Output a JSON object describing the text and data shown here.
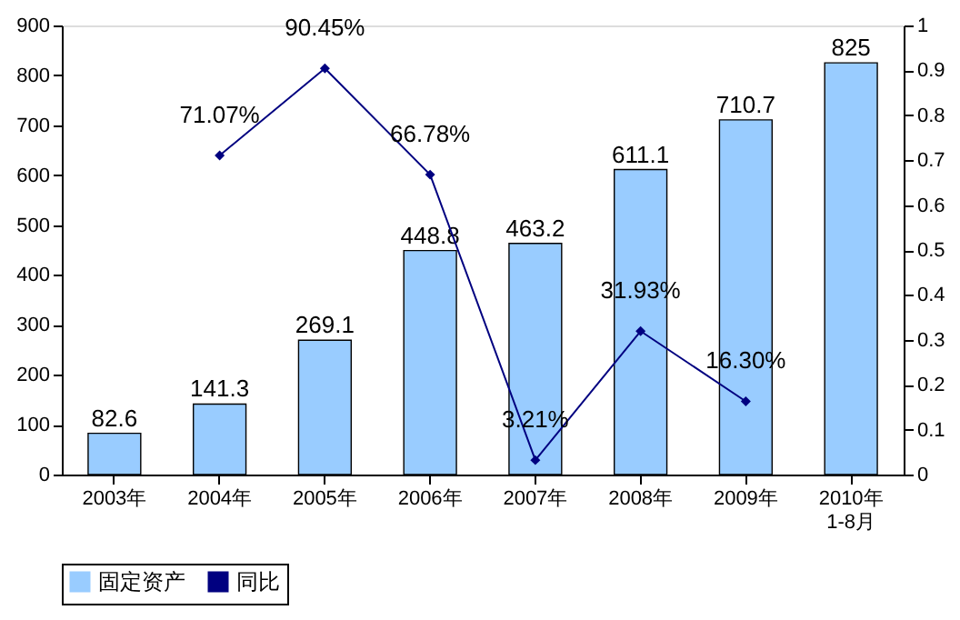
{
  "chart_data": {
    "type": "bar",
    "categories": [
      "2003年",
      "2004年",
      "2005年",
      "2006年",
      "2007年",
      "2008年",
      "2009年",
      "2010年 1-8月"
    ],
    "series": [
      {
        "name": "固定资产",
        "color": "#99ccff",
        "values": [
          82.6,
          141.3,
          269.1,
          448.8,
          463.2,
          611.1,
          710.7,
          825
        ],
        "value_labels": [
          "82.6",
          "141.3",
          "269.1",
          "448.8",
          "463.2",
          "611.1",
          "710.7",
          "825"
        ]
      },
      {
        "name": "同比",
        "type": "line",
        "axis": "y2",
        "color": "#000080",
        "values": [
          null,
          0.7107,
          0.9045,
          0.6678,
          0.0321,
          0.3193,
          0.163,
          null
        ],
        "value_labels": [
          null,
          "71.07%",
          "90.45%",
          "66.78%",
          "3.21%",
          "31.93%",
          "16.30%",
          null
        ]
      }
    ],
    "ylim": [
      0,
      900
    ],
    "yticks": [
      0,
      100,
      200,
      300,
      400,
      500,
      600,
      700,
      800,
      900
    ],
    "y2lim": [
      0,
      1
    ],
    "y2ticks": [
      0,
      0.1,
      0.2,
      0.3,
      0.4,
      0.5,
      0.6,
      0.7,
      0.8,
      0.9,
      1
    ],
    "marker": "diamond",
    "legend": "bottom"
  }
}
